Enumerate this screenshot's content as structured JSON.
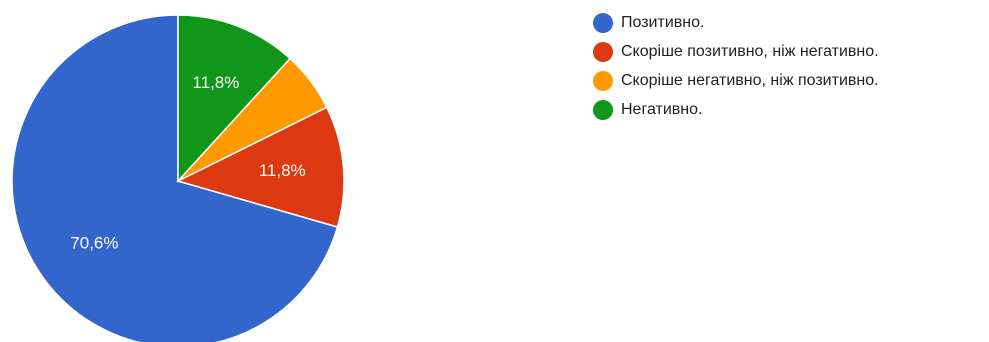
{
  "chart_data": {
    "type": "pie",
    "title": "",
    "slices": [
      {
        "name": "Позитивно.",
        "value": 70.6,
        "label": "70,6%",
        "color": "#3366cc"
      },
      {
        "name": "Скоріше позитивно, ніж негативно.",
        "value": 11.8,
        "label": "11,8%",
        "color": "#dc3912"
      },
      {
        "name": "Скоріше негативно, ніж позитивно.",
        "value": 5.9,
        "label": "",
        "color": "#ff9900"
      },
      {
        "name": "Негативно.",
        "value": 11.8,
        "label": "11,8%",
        "color": "#109618"
      }
    ],
    "start_angle_deg": 90,
    "direction": "counterclockwise",
    "legend_position": "right"
  }
}
